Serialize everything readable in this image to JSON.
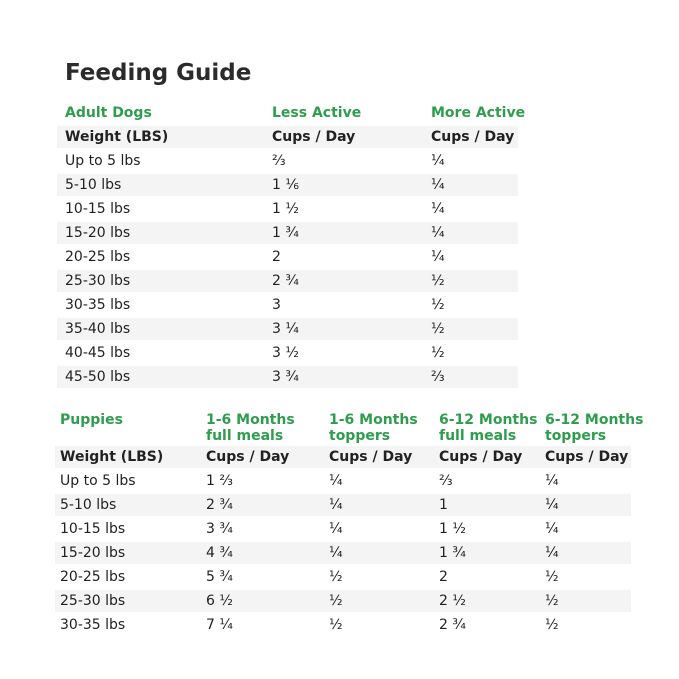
{
  "title": "Feeding Guide",
  "adult": {
    "headers": [
      "Adult Dogs",
      "Less Active",
      "More Active"
    ],
    "subheaders": [
      "Weight (LBS)",
      "Cups / Day",
      "Cups / Day"
    ],
    "rows": [
      [
        "Up to 5 lbs",
        "⅔",
        "¼"
      ],
      [
        "5-10 lbs",
        "1 ⅙",
        "¼"
      ],
      [
        "10-15 lbs",
        "1 ½",
        "¼"
      ],
      [
        "15-20 lbs",
        "1 ¾",
        "¼"
      ],
      [
        "20-25 lbs",
        "2",
        "¼"
      ],
      [
        "25-30 lbs",
        "2 ¾",
        "½"
      ],
      [
        "30-35 lbs",
        "3",
        "½"
      ],
      [
        "35-40 lbs",
        "3 ¼",
        "½"
      ],
      [
        "40-45 lbs",
        "3 ½",
        "½"
      ],
      [
        "45-50 lbs",
        "3 ¾",
        "⅔"
      ]
    ]
  },
  "puppies": {
    "headers": [
      [
        "Puppies"
      ],
      [
        "1-6 Months",
        "full meals"
      ],
      [
        "1-6 Months",
        "toppers"
      ],
      [
        "6-12 Months",
        "full meals"
      ],
      [
        "6-12 Months",
        "toppers"
      ]
    ],
    "subheaders": [
      "Weight (LBS)",
      "Cups / Day",
      "Cups / Day",
      "Cups / Day",
      "Cups / Day"
    ],
    "rows": [
      [
        "Up to 5 lbs",
        "1 ⅔",
        "¼",
        "⅔",
        "¼"
      ],
      [
        "5-10 lbs",
        "2 ¾",
        "¼",
        "1",
        "¼"
      ],
      [
        "10-15 lbs",
        "3 ¾",
        "¼",
        "1 ½",
        "¼"
      ],
      [
        "15-20 lbs",
        "4 ¾",
        "¼",
        "1 ¾",
        "¼"
      ],
      [
        "20-25 lbs",
        "5 ¾",
        "½",
        "2",
        "½"
      ],
      [
        "25-30 lbs",
        "6 ½",
        "½",
        "2 ½",
        "½"
      ],
      [
        "30-35 lbs",
        "7 ¼",
        "½",
        "2 ¾",
        "½"
      ]
    ]
  }
}
